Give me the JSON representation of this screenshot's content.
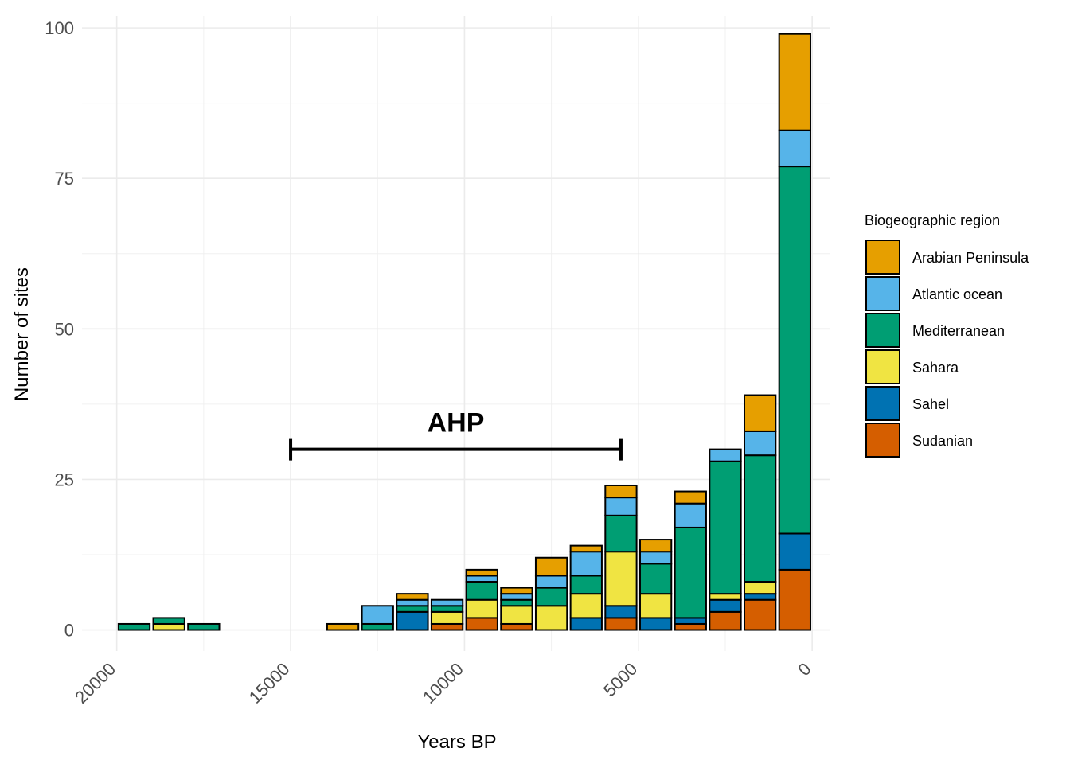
{
  "chart_data": {
    "type": "bar",
    "stacked": true,
    "xlabel": "Years BP",
    "ylabel": "Number of sites",
    "xlim": [
      21000,
      -500
    ],
    "x_reversed": true,
    "ylim": [
      -3.5,
      102
    ],
    "x_ticks": [
      20000,
      15000,
      10000,
      5000,
      0
    ],
    "y_ticks": [
      0,
      25,
      50,
      75,
      100
    ],
    "grid": true,
    "bin_width": 1000,
    "legend": {
      "title": "Biogeographic region",
      "position": "right"
    },
    "x": [
      19500,
      18500,
      17500,
      13500,
      12500,
      11500,
      10500,
      9500,
      8500,
      7500,
      6500,
      5500,
      4500,
      3500,
      2500,
      1500,
      500
    ],
    "series": [
      {
        "name": "Sudanian",
        "color": "#D55E00",
        "values": [
          0,
          0,
          0,
          0,
          0,
          0,
          1,
          2,
          1,
          0,
          0,
          2,
          0,
          1,
          3,
          5,
          10
        ]
      },
      {
        "name": "Sahel",
        "color": "#0072B2",
        "values": [
          0,
          0,
          0,
          0,
          0,
          3,
          0,
          0,
          0,
          0,
          2,
          2,
          2,
          1,
          2,
          1,
          6
        ]
      },
      {
        "name": "Sahara",
        "color": "#F0E442",
        "values": [
          0,
          1,
          0,
          0,
          0,
          0,
          2,
          3,
          3,
          4,
          4,
          9,
          4,
          0,
          1,
          2,
          0
        ]
      },
      {
        "name": "Mediterranean",
        "color": "#009E73",
        "values": [
          1,
          1,
          1,
          0,
          1,
          1,
          1,
          3,
          1,
          3,
          3,
          6,
          5,
          15,
          22,
          21,
          61
        ]
      },
      {
        "name": "Atlantic ocean",
        "color": "#56B4E9",
        "values": [
          0,
          0,
          0,
          0,
          3,
          1,
          1,
          1,
          1,
          2,
          4,
          3,
          2,
          4,
          2,
          4,
          6
        ]
      },
      {
        "name": "Arabian Peninsula",
        "color": "#E69F00",
        "values": [
          0,
          0,
          0,
          1,
          0,
          1,
          0,
          1,
          1,
          3,
          1,
          2,
          2,
          2,
          0,
          6,
          16
        ]
      }
    ],
    "annotations": [
      {
        "type": "range-bar",
        "label": "AHP",
        "x_start": 15000,
        "x_end": 5500,
        "y": 30
      }
    ]
  }
}
